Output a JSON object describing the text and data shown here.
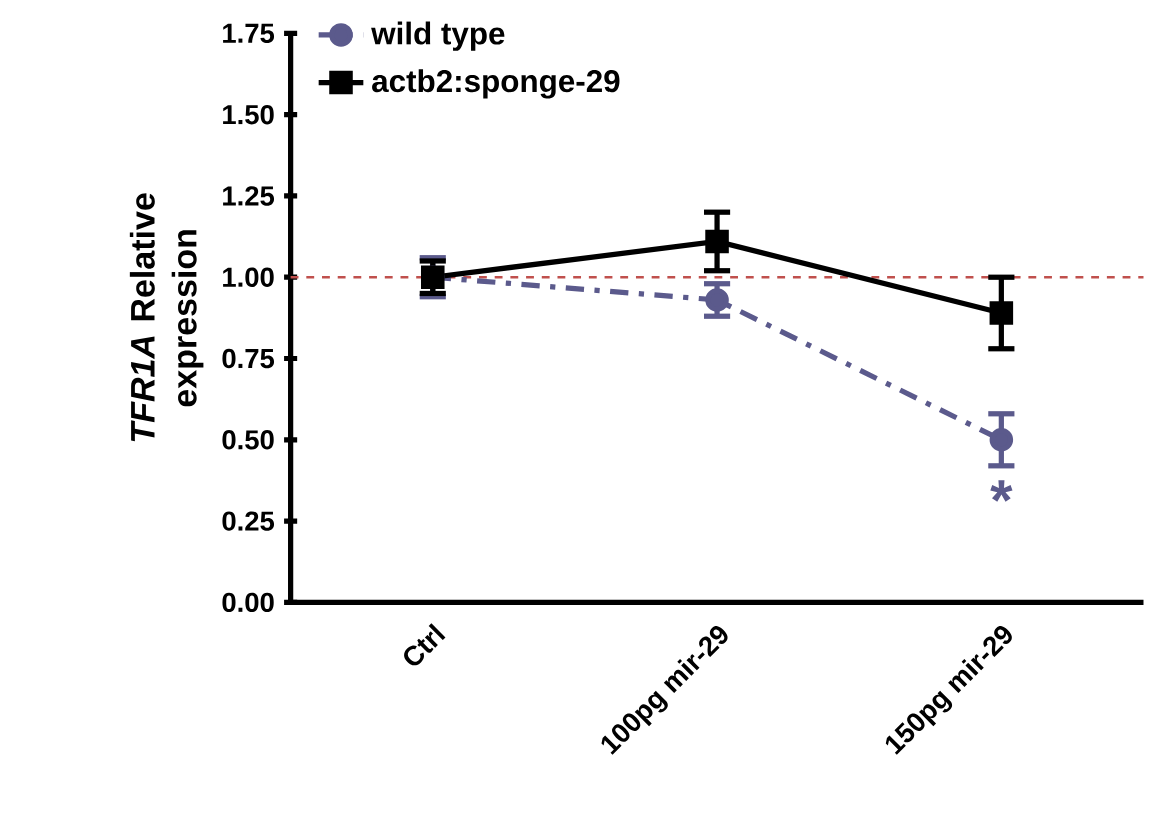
{
  "chart_data": {
    "type": "line",
    "ylabel": "*TFR1A* Relative expression",
    "categories": [
      "Ctrl",
      "100pg mir-29",
      "150pg mir-29"
    ],
    "series": [
      {
        "name": "wild type",
        "color": "#5b5a8c",
        "values": [
          1.0,
          0.93,
          0.5
        ],
        "errors": [
          0.06,
          0.05,
          0.08
        ],
        "marker": "circle",
        "line_style": "dashed"
      },
      {
        "name": "actb2:sponge-29",
        "color": "#000000",
        "values": [
          1.0,
          1.11,
          0.89
        ],
        "errors": [
          0.05,
          0.09,
          0.11
        ],
        "marker": "square",
        "line_style": "solid"
      }
    ],
    "ylim": [
      0,
      1.75
    ],
    "yticks": [
      {
        "value": 0,
        "label": "0.00"
      },
      {
        "value": 0.25,
        "label": "0.25"
      },
      {
        "value": 0.5,
        "label": "0.50"
      },
      {
        "value": 0.75,
        "label": "0.75"
      },
      {
        "value": 1.0,
        "label": "1.00"
      },
      {
        "value": 1.25,
        "label": "1.25"
      },
      {
        "value": 1.5,
        "label": "1.50"
      },
      {
        "value": 1.75,
        "label": "1.75"
      }
    ],
    "ref_lines": [
      {
        "axis": "y",
        "value": 1.0,
        "color": "#c0504d",
        "line_style": "dashed"
      }
    ],
    "annotations": [
      "*"
    ],
    "legend": "top left",
    "grid": false
  }
}
